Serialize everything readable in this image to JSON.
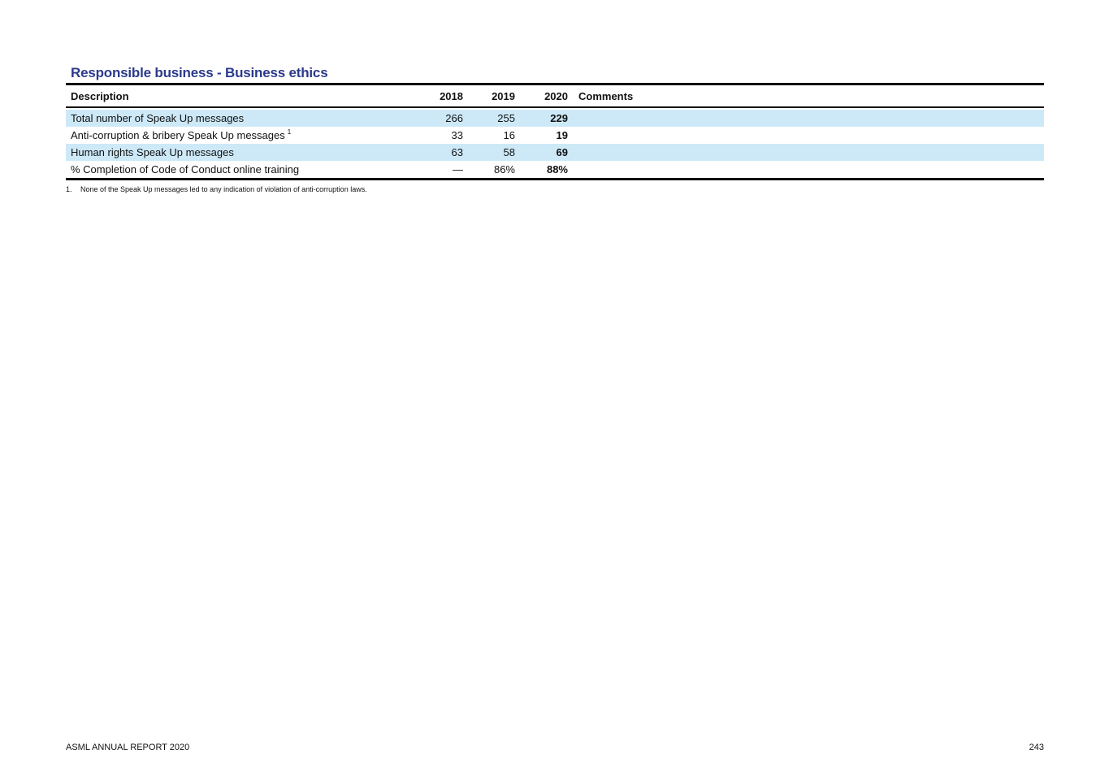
{
  "title": "Responsible business - Business ethics",
  "table": {
    "headers": {
      "description": "Description",
      "y2018": "2018",
      "y2019": "2019",
      "y2020": "2020",
      "comments": "Comments"
    },
    "rows": [
      {
        "description": "Total number of Speak Up messages",
        "note": "",
        "y2018": "266",
        "y2019": "255",
        "y2020": "229",
        "comments": ""
      },
      {
        "description": "Anti-corruption & bribery Speak Up messages",
        "note": "1",
        "y2018": "33",
        "y2019": "16",
        "y2020": "19",
        "comments": ""
      },
      {
        "description": "Human rights Speak Up messages",
        "note": "",
        "y2018": "63",
        "y2019": "58",
        "y2020": "69",
        "comments": ""
      },
      {
        "description": "% Completion of Code of Conduct online training",
        "note": "",
        "y2018": "—",
        "y2019": "86%",
        "y2020": "88%",
        "comments": ""
      }
    ]
  },
  "footnote": {
    "number": "1.",
    "text": "None of the Speak Up messages led to any indication of violation of anti-corruption laws."
  },
  "footer": {
    "left": "ASML ANNUAL REPORT 2020",
    "page_number": "243"
  },
  "colors": {
    "title": "#2c3a8a",
    "row_highlight": "#cde9f8"
  }
}
